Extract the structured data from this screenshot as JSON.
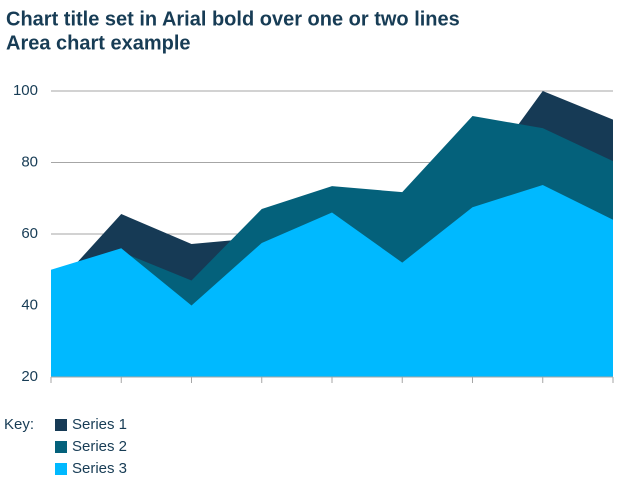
{
  "chart_data": {
    "type": "area",
    "title": "Chart title set in Arial bold over one or two lines",
    "subtitle": "Area chart example",
    "legend_title": "Key:",
    "categories": [
      null,
      null,
      null,
      null,
      null,
      null,
      null,
      null,
      null
    ],
    "series": [
      {
        "name": "Series 1",
        "color": "#163a55",
        "values": [
          44,
          65.6,
          57.2,
          59,
          60,
          55,
          73,
          100,
          92
        ]
      },
      {
        "name": "Series 2",
        "color": "#04617b",
        "values": [
          42,
          55,
          47,
          67,
          73.4,
          71.7,
          93,
          89.6,
          80.4
        ]
      },
      {
        "name": "Series 3",
        "color": "#00b9ff",
        "values": [
          50,
          56,
          40,
          57.5,
          66,
          52,
          67.5,
          73.7,
          64
        ]
      }
    ],
    "ylim": [
      20,
      100
    ],
    "yticks": [
      20,
      40,
      60,
      80,
      100
    ],
    "grid": true
  }
}
